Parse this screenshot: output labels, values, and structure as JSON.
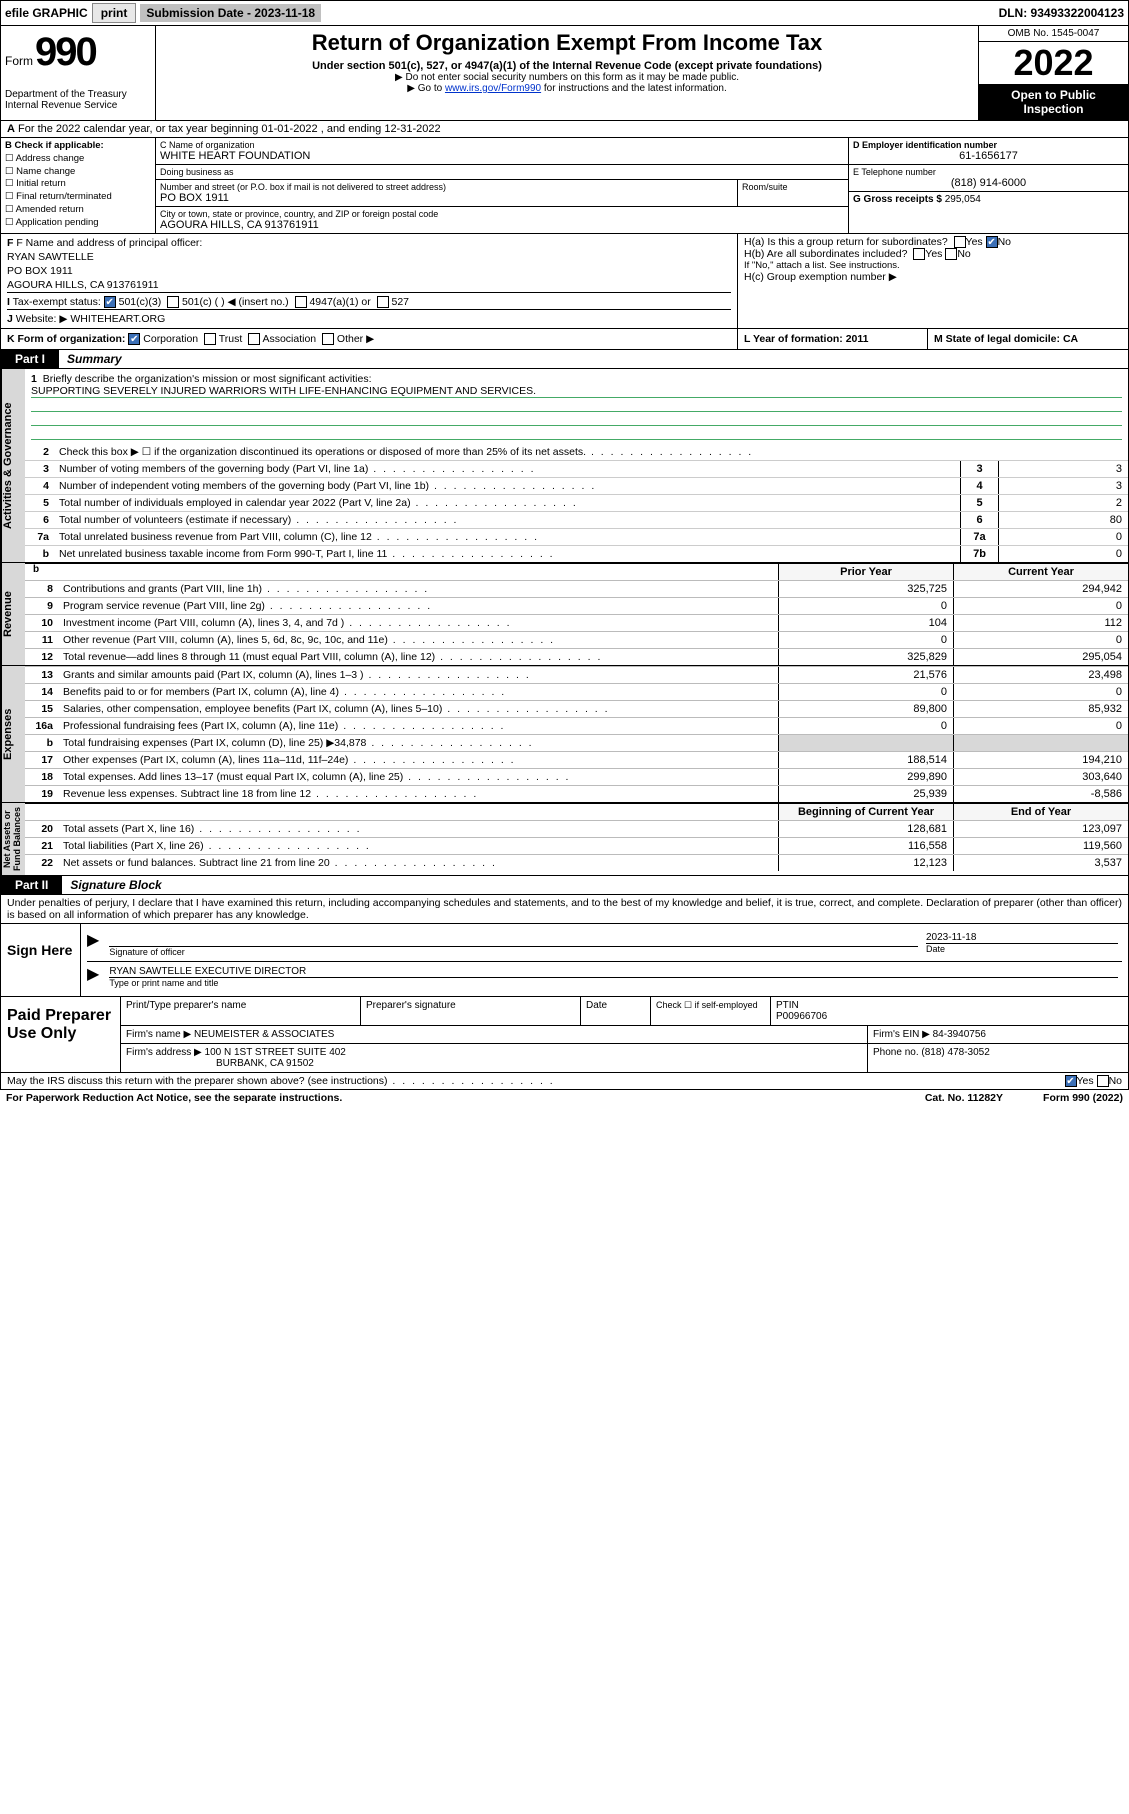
{
  "topbar": {
    "efile": "efile GRAPHIC",
    "print": "print",
    "sub_label": "Submission Date - 2023-11-18",
    "dln": "DLN: 93493322004123"
  },
  "header": {
    "form_word": "Form",
    "form_num": "990",
    "dept": "Department of the Treasury\nInternal Revenue Service",
    "title": "Return of Organization Exempt From Income Tax",
    "sub1": "Under section 501(c), 527, or 4947(a)(1) of the Internal Revenue Code (except private foundations)",
    "sub2": "▶ Do not enter social security numbers on this form as it may be made public.",
    "sub3_pre": "▶ Go to ",
    "sub3_link": "www.irs.gov/Form990",
    "sub3_post": " for instructions and the latest information.",
    "omb": "OMB No. 1545-0047",
    "year": "2022",
    "open": "Open to Public Inspection"
  },
  "row_a": "For the 2022 calendar year, or tax year beginning 01-01-2022    , and ending 12-31-2022",
  "box_b": {
    "label": "B Check if applicable:",
    "opts": [
      "Address change",
      "Name change",
      "Initial return",
      "Final return/terminated",
      "Amended return",
      "Application pending"
    ]
  },
  "box_c": {
    "name_lab": "C Name of organization",
    "name": "WHITE HEART FOUNDATION",
    "dba_lab": "Doing business as",
    "dba": "",
    "street_lab": "Number and street (or P.O. box if mail is not delivered to street address)",
    "room_lab": "Room/suite",
    "street": "PO BOX 1911",
    "city_lab": "City or town, state or province, country, and ZIP or foreign postal code",
    "city": "AGOURA HILLS, CA  913761911"
  },
  "box_d": {
    "label": "D Employer identification number",
    "value": "61-1656177"
  },
  "box_e": {
    "label": "E Telephone number",
    "value": "(818) 914-6000"
  },
  "box_g": {
    "label": "G Gross receipts $",
    "value": "295,054"
  },
  "box_f": {
    "label": "F Name and address of principal officer:",
    "name": "RYAN SAWTELLE",
    "addr1": "PO BOX 1911",
    "addr2": "AGOURA HILLS, CA  913761911"
  },
  "tax_exempt": {
    "label": "Tax-exempt status:",
    "opt_501c3": "501(c)(3)",
    "opt_501c": "501(c) (  ) ◀ (insert no.)",
    "opt_4947": "4947(a)(1) or",
    "opt_527": "527"
  },
  "website": {
    "label": "Website: ▶",
    "value": "WHITEHEART.ORG"
  },
  "box_h": {
    "ha": "H(a)  Is this a group return for subordinates?",
    "hb": "H(b)  Are all subordinates included?",
    "hb_note": "If \"No,\" attach a list. See instructions.",
    "hc": "H(c)  Group exemption number ▶",
    "yes": "Yes",
    "no": "No"
  },
  "row_k": {
    "k": "K Form of organization:",
    "corp": "Corporation",
    "trust": "Trust",
    "assoc": "Association",
    "other": "Other ▶",
    "l": "L Year of formation: 2011",
    "m": "M State of legal domicile: CA"
  },
  "partI": {
    "tab": "Part I",
    "title": "Summary"
  },
  "mission": {
    "q": "Briefly describe the organization's mission or most significant activities:",
    "text": "SUPPORTING SEVERELY INJURED WARRIORS WITH LIFE-ENHANCING EQUIPMENT AND SERVICES."
  },
  "gov_lines": [
    {
      "n": "2",
      "t": "Check this box ▶ ☐  if the organization discontinued its operations or disposed of more than 25% of its net assets.",
      "box": "",
      "v": ""
    },
    {
      "n": "3",
      "t": "Number of voting members of the governing body (Part VI, line 1a)",
      "box": "3",
      "v": "3"
    },
    {
      "n": "4",
      "t": "Number of independent voting members of the governing body (Part VI, line 1b)",
      "box": "4",
      "v": "3"
    },
    {
      "n": "5",
      "t": "Total number of individuals employed in calendar year 2022 (Part V, line 2a)",
      "box": "5",
      "v": "2"
    },
    {
      "n": "6",
      "t": "Total number of volunteers (estimate if necessary)",
      "box": "6",
      "v": "80"
    },
    {
      "n": "7a",
      "t": "Total unrelated business revenue from Part VIII, column (C), line 12",
      "box": "7a",
      "v": "0"
    },
    {
      "n": "b",
      "t": "Net unrelated business taxable income from Form 990-T, Part I, line 11",
      "box": "7b",
      "v": "0"
    }
  ],
  "col_hdrs": {
    "blank": "",
    "prior": "Prior Year",
    "cur": "Current Year"
  },
  "revenue": [
    {
      "n": "8",
      "t": "Contributions and grants (Part VIII, line 1h)",
      "p": "325,725",
      "c": "294,942"
    },
    {
      "n": "9",
      "t": "Program service revenue (Part VIII, line 2g)",
      "p": "0",
      "c": "0"
    },
    {
      "n": "10",
      "t": "Investment income (Part VIII, column (A), lines 3, 4, and 7d )",
      "p": "104",
      "c": "112"
    },
    {
      "n": "11",
      "t": "Other revenue (Part VIII, column (A), lines 5, 6d, 8c, 9c, 10c, and 11e)",
      "p": "0",
      "c": "0"
    },
    {
      "n": "12",
      "t": "Total revenue—add lines 8 through 11 (must equal Part VIII, column (A), line 12)",
      "p": "325,829",
      "c": "295,054"
    }
  ],
  "expenses": [
    {
      "n": "13",
      "t": "Grants and similar amounts paid (Part IX, column (A), lines 1–3 )",
      "p": "21,576",
      "c": "23,498"
    },
    {
      "n": "14",
      "t": "Benefits paid to or for members (Part IX, column (A), line 4)",
      "p": "0",
      "c": "0"
    },
    {
      "n": "15",
      "t": "Salaries, other compensation, employee benefits (Part IX, column (A), lines 5–10)",
      "p": "89,800",
      "c": "85,932"
    },
    {
      "n": "16a",
      "t": "Professional fundraising fees (Part IX, column (A), line 11e)",
      "p": "0",
      "c": "0"
    },
    {
      "n": "b",
      "t": "Total fundraising expenses (Part IX, column (D), line 25) ▶34,878",
      "p": "",
      "c": ""
    },
    {
      "n": "17",
      "t": "Other expenses (Part IX, column (A), lines 11a–11d, 11f–24e)",
      "p": "188,514",
      "c": "194,210"
    },
    {
      "n": "18",
      "t": "Total expenses. Add lines 13–17 (must equal Part IX, column (A), line 25)",
      "p": "299,890",
      "c": "303,640"
    },
    {
      "n": "19",
      "t": "Revenue less expenses. Subtract line 18 from line 12",
      "p": "25,939",
      "c": "-8,586"
    }
  ],
  "na_hdrs": {
    "prior": "Beginning of Current Year",
    "cur": "End of Year"
  },
  "netassets": [
    {
      "n": "20",
      "t": "Total assets (Part X, line 16)",
      "p": "128,681",
      "c": "123,097"
    },
    {
      "n": "21",
      "t": "Total liabilities (Part X, line 26)",
      "p": "116,558",
      "c": "119,560"
    },
    {
      "n": "22",
      "t": "Net assets or fund balances. Subtract line 21 from line 20",
      "p": "12,123",
      "c": "3,537"
    }
  ],
  "side_labels": {
    "gov": "Activities & Governance",
    "rev": "Revenue",
    "exp": "Expenses",
    "na": "Net Assets or\nFund Balances"
  },
  "partII": {
    "tab": "Part II",
    "title": "Signature Block"
  },
  "perjury": "Under penalties of perjury, I declare that I have examined this return, including accompanying schedules and statements, and to the best of my knowledge and belief, it is true, correct, and complete. Declaration of preparer (other than officer) is based on all information of which preparer has any knowledge.",
  "sign": {
    "here": "Sign Here",
    "sig_lab": "Signature of officer",
    "date_lab": "Date",
    "date": "2023-11-18",
    "name": "RYAN SAWTELLE  EXECUTIVE DIRECTOR",
    "name_lab": "Type or print name and title"
  },
  "paid": {
    "title": "Paid Preparer Use Only",
    "h1": "Print/Type preparer's name",
    "h2": "Preparer's signature",
    "h3": "Date",
    "h4": "Check ☐ if self-employed",
    "ptin_lab": "PTIN",
    "ptin": "P00966706",
    "firm_lab": "Firm's name   ▶",
    "firm": "NEUMEISTER & ASSOCIATES",
    "ein_lab": "Firm's EIN ▶",
    "ein": "84-3940756",
    "addr_lab": "Firm's address ▶",
    "addr1": "100 N 1ST STREET SUITE 402",
    "addr2": "BURBANK, CA  91502",
    "phone_lab": "Phone no.",
    "phone": "(818) 478-3052"
  },
  "discuss": {
    "q": "May the IRS discuss this return with the preparer shown above? (see instructions)",
    "yes": "Yes",
    "no": "No"
  },
  "footer": {
    "pra": "For Paperwork Reduction Act Notice, see the separate instructions.",
    "cat": "Cat. No. 11282Y",
    "form": "Form 990 (2022)"
  },
  "colors": {
    "accent": "#3b6fb6",
    "link": "#0033cc",
    "grey": "#d8d8d8"
  }
}
